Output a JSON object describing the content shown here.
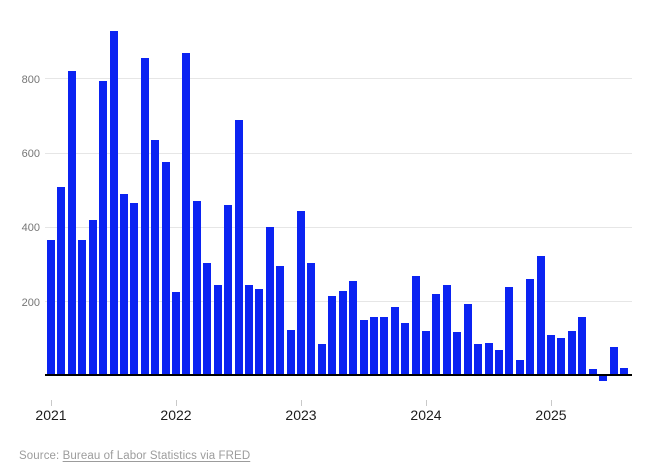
{
  "chart_data": {
    "type": "bar",
    "x": [
      "2021-01",
      "2021-02",
      "2021-03",
      "2021-04",
      "2021-05",
      "2021-06",
      "2021-07",
      "2021-08",
      "2021-09",
      "2021-10",
      "2021-11",
      "2021-12",
      "2022-01",
      "2022-02",
      "2022-03",
      "2022-04",
      "2022-05",
      "2022-06",
      "2022-07",
      "2022-08",
      "2022-09",
      "2022-10",
      "2022-11",
      "2022-12",
      "2023-01",
      "2023-02",
      "2023-03",
      "2023-04",
      "2023-05",
      "2023-06",
      "2023-07",
      "2023-08",
      "2023-09",
      "2023-10",
      "2023-11",
      "2023-12",
      "2024-01",
      "2024-02",
      "2024-03",
      "2024-04",
      "2024-05",
      "2024-06",
      "2024-07",
      "2024-08",
      "2024-09",
      "2024-10",
      "2024-11",
      "2024-12",
      "2025-01",
      "2025-02",
      "2025-03",
      "2025-04",
      "2025-05",
      "2025-06",
      "2025-07",
      "2025-08"
    ],
    "values": [
      365,
      510,
      820,
      365,
      420,
      795,
      930,
      490,
      465,
      855,
      635,
      575,
      225,
      870,
      470,
      305,
      245,
      460,
      690,
      245,
      235,
      400,
      295,
      125,
      445,
      305,
      85,
      215,
      230,
      255,
      150,
      158,
      158,
      185,
      143,
      270,
      120,
      222,
      246,
      118,
      193,
      87,
      88,
      71,
      240,
      44,
      261,
      323,
      111,
      102,
      120,
      158,
      19,
      -13,
      79,
      22
    ],
    "yticks": [
      200,
      400,
      600,
      800
    ],
    "ytick_labels": [
      "200",
      "400",
      "600",
      "800"
    ],
    "ylim": [
      -50,
      1000
    ],
    "x_tick_labels": [
      "2021",
      "2022",
      "2023",
      "2024",
      "2025"
    ],
    "grid": true,
    "legend": "none",
    "bar_color": "#0b23f2",
    "gridline_color": "#e6e6e6",
    "axis_line_color": "#000000",
    "ytick_label_color": "#767676",
    "xtick_label_color": "#1c1c1c",
    "source_text_color": "#9c9c9c"
  },
  "source_line": {
    "prefix": "Source: ",
    "link_text": "Bureau of Labor Statistics via FRED"
  }
}
